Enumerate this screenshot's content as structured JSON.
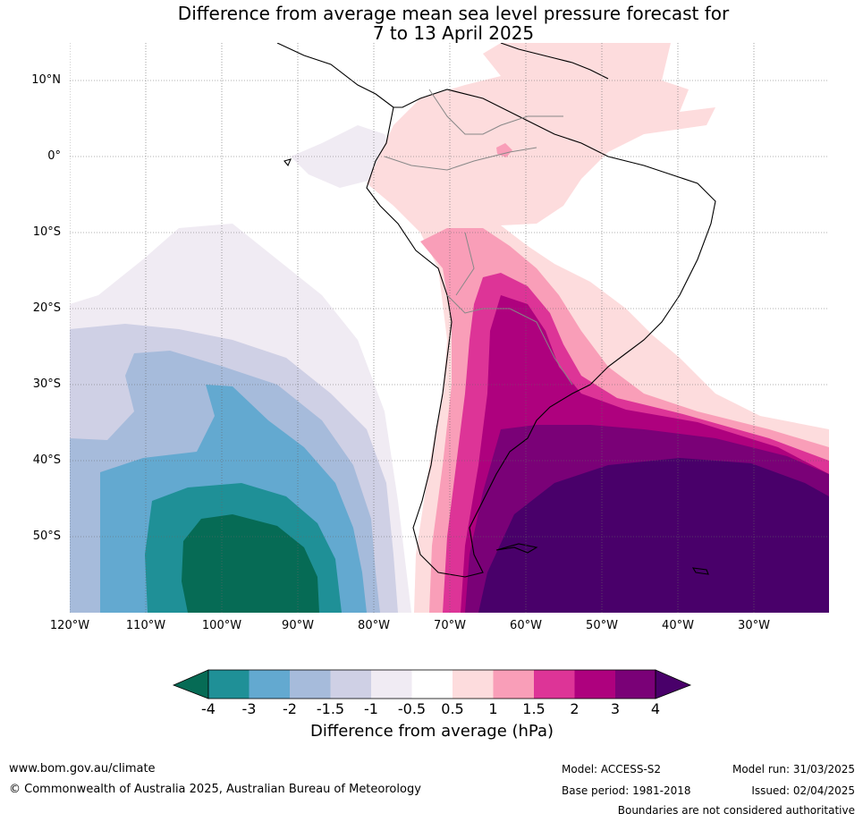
{
  "title_line1": "Difference from average mean sea level pressure forecast for",
  "title_line2": "7 to 13 April 2025",
  "lat_labels": [
    "10°N",
    "0°",
    "10°S",
    "20°S",
    "30°S",
    "40°S",
    "50°S"
  ],
  "lon_labels": [
    "120°W",
    "110°W",
    "100°W",
    "90°W",
    "80°W",
    "70°W",
    "60°W",
    "50°W",
    "40°W",
    "30°W"
  ],
  "colorbar": {
    "title": "Difference from average (hPa)",
    "tick_labels": [
      "-4",
      "-3",
      "-2",
      "-1.5",
      "-1",
      "-0.5",
      "0.5",
      "1",
      "1.5",
      "2",
      "3",
      "4"
    ],
    "colors": [
      "#066b55",
      "#1f9097",
      "#63a9d0",
      "#a6bbdb",
      "#cfd0e5",
      "#f0ebf3",
      "#ffffff",
      "#fddcdd",
      "#f99eb8",
      "#dd3497",
      "#ae017e",
      "#7a0177",
      "#49006a"
    ]
  },
  "footer": {
    "website": "www.bom.gov.au/climate",
    "copyright": "© Commonwealth of Australia 2025, Australian Bureau of Meteorology",
    "model": "Model: ACCESS-S2",
    "base_period": "Base period: 1981-2018",
    "model_run": "Model run: 31/03/2025",
    "issued": "Issued: 02/04/2025",
    "disclaimer": "Boundaries are not considered authoritative"
  }
}
